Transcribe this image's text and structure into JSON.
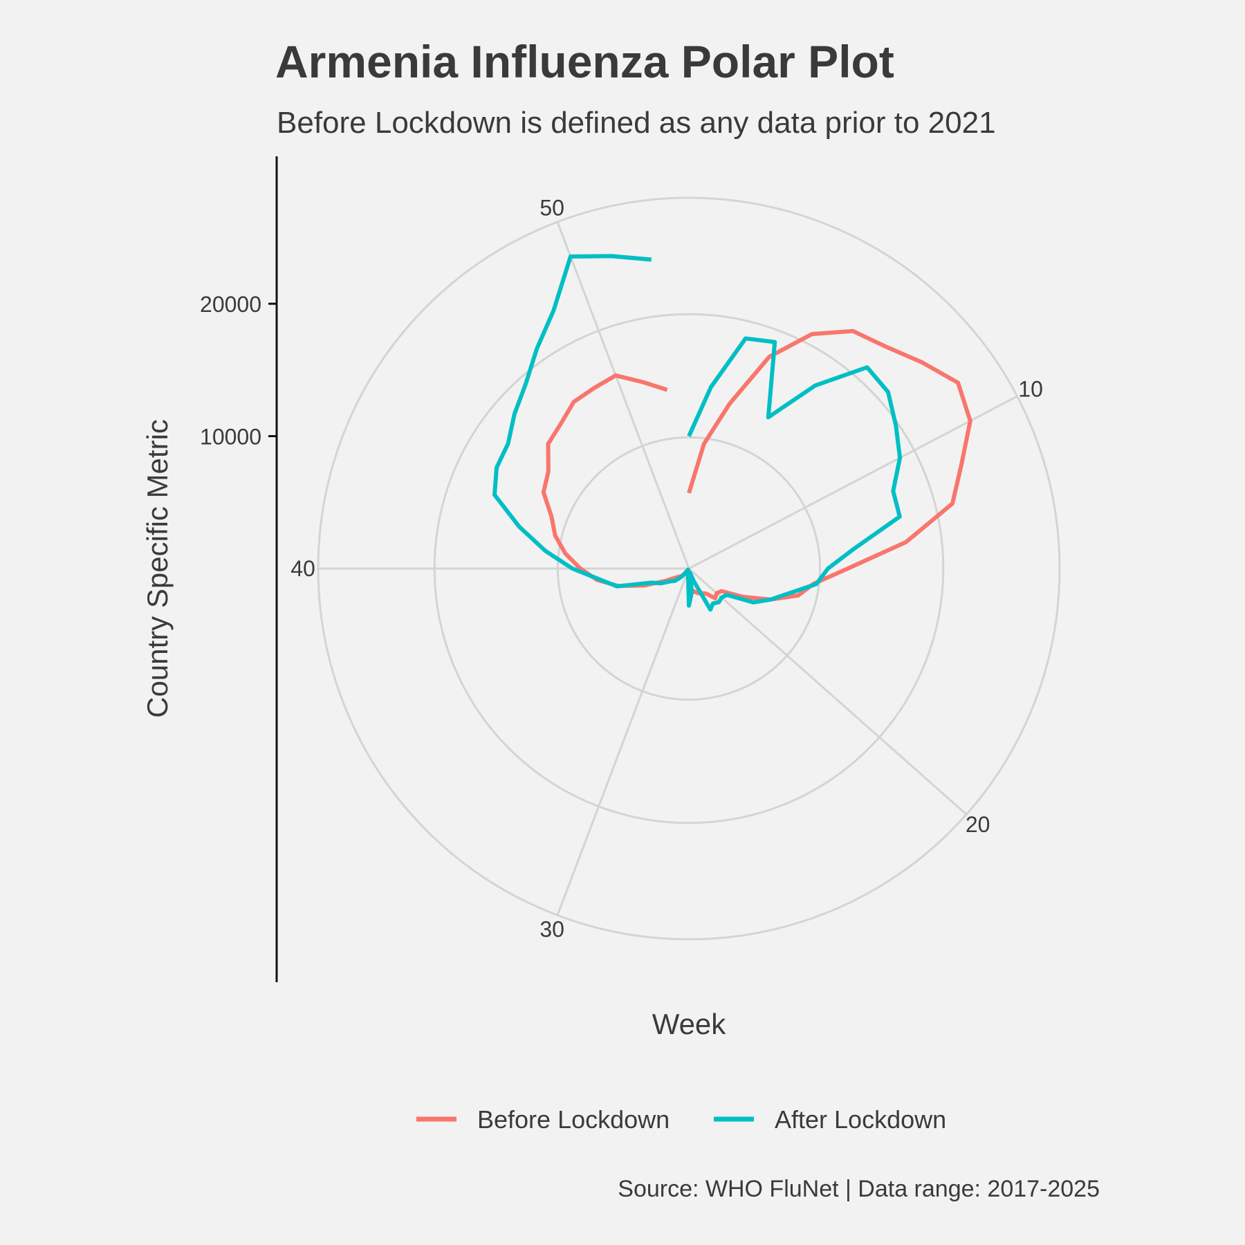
{
  "chart_data": {
    "type": "line",
    "coordinate_system": "polar",
    "title": "Armenia Influenza Polar Plot",
    "subtitle": "Before Lockdown is defined as any data prior to 2021",
    "xlabel": "Week",
    "ylabel": "Country Specific Metric",
    "caption": "Source: WHO FluNet | Data range: 2017-2025",
    "x_ticks": [
      10,
      20,
      30,
      40,
      50
    ],
    "x_range": [
      1,
      53
    ],
    "y_ticks": [
      10000,
      20000
    ],
    "y_range": [
      0,
      28000
    ],
    "legend": {
      "position": "bottom"
    },
    "colors": {
      "Before Lockdown": "#F8766D",
      "After Lockdown": "#00BFC4"
    },
    "x": [
      1,
      2,
      3,
      4,
      5,
      6,
      7,
      8,
      9,
      10,
      11,
      12,
      13,
      14,
      15,
      16,
      17,
      18,
      19,
      20,
      21,
      22,
      23,
      24,
      25,
      26,
      27,
      28,
      29,
      30,
      31,
      32,
      33,
      34,
      35,
      36,
      37,
      38,
      39,
      40,
      41,
      42,
      43,
      44,
      45,
      46,
      47,
      48,
      49,
      50,
      51,
      52
    ],
    "series": [
      {
        "name": "Before Lockdown",
        "values": [
          5700,
          9500,
          12800,
          17100,
          20000,
          21800,
          22400,
          23500,
          24700,
          24000,
          22000,
          20500,
          16500,
          12000,
          9500,
          8500,
          6600,
          4600,
          3000,
          2800,
          3000,
          2300,
          2100,
          2000,
          1800,
          1600,
          900,
          500,
          500,
          400,
          300,
          200,
          700,
          900,
          1200,
          2000,
          3600,
          5500,
          7000,
          8200,
          9400,
          10400,
          11100,
          12400,
          12900,
          14200,
          14600,
          15300,
          15400,
          15600,
          14500,
          13600
        ]
      },
      {
        "name": "After Lockdown",
        "values": [
          10000,
          13800,
          17900,
          18300,
          12900,
          16800,
          20300,
          20100,
          19000,
          18000,
          16500,
          16400,
          12600,
          10500,
          9700,
          7800,
          6600,
          5500,
          3500,
          3300,
          3400,
          3200,
          3500,
          1000,
          300,
          1800,
          2800,
          500,
          300,
          200,
          200,
          100,
          800,
          1400,
          1700,
          2400,
          3000,
          5600,
          6800,
          8800,
          10900,
          13200,
          15700,
          16400,
          16600,
          17600,
          18600,
          20200,
          22000,
          25200,
          24300,
          23500
        ]
      }
    ]
  }
}
